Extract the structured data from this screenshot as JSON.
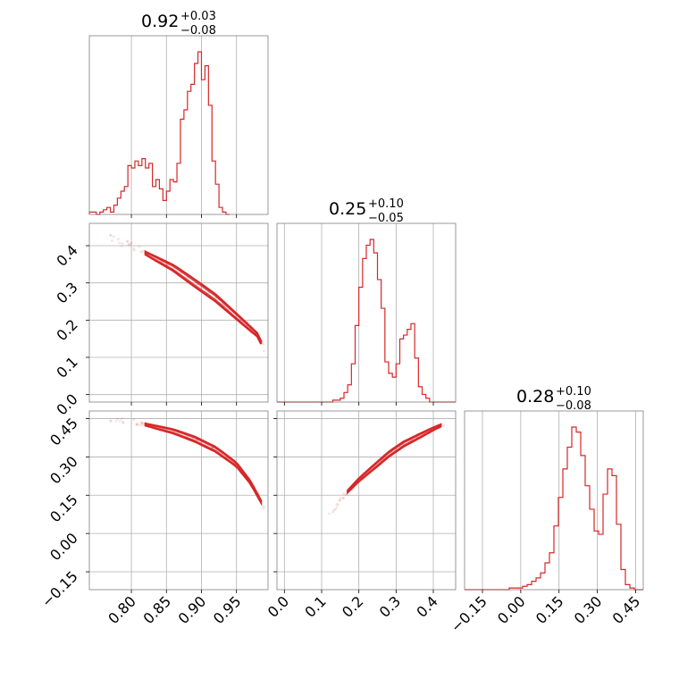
{
  "chart_data": [
    {
      "type": "histogram",
      "panel": "diag-1",
      "title_value": "0.92",
      "title_plus": "+0.03",
      "title_minus": "−0.08",
      "xlim": [
        0.74,
        0.995
      ],
      "bins_start": 0.74,
      "bin_width": 0.005,
      "counts": [
        1,
        1,
        0,
        1,
        2,
        3,
        1,
        4,
        7,
        10,
        12,
        21,
        20,
        23,
        21,
        24,
        20,
        22,
        12,
        15,
        11,
        6,
        10,
        15,
        14,
        22,
        41,
        45,
        53,
        56,
        65,
        70,
        58,
        64,
        47,
        23,
        13,
        3,
        1,
        0
      ],
      "grid": true
    },
    {
      "type": "scatter",
      "panel": "y1-vs-x1",
      "x_ticks": [
        "0.80",
        "0.85",
        "0.90",
        "0.95"
      ],
      "y_ticks": [
        "0.0",
        "0.1",
        "0.2",
        "0.3",
        "0.4"
      ],
      "xlim": [
        0.74,
        0.995
      ],
      "ylim": [
        -0.02,
        0.46
      ],
      "trend_x": [
        0.77,
        0.8,
        0.83,
        0.86,
        0.89,
        0.92,
        0.95,
        0.98,
        0.99
      ],
      "trend_y": [
        0.42,
        0.4,
        0.37,
        0.34,
        0.3,
        0.26,
        0.21,
        0.16,
        0.12
      ],
      "grid": true
    },
    {
      "type": "histogram",
      "panel": "diag-2",
      "title_value": "0.25",
      "title_plus": "+0.10",
      "title_minus": "−0.05",
      "xlim": [
        -0.02,
        0.46
      ],
      "bins_start": -0.02,
      "bin_width": 0.01,
      "counts": [
        0,
        0,
        0,
        0,
        0,
        0,
        0,
        0,
        0,
        0,
        0,
        0,
        0,
        0,
        0,
        1,
        1,
        2,
        5,
        9,
        20,
        40,
        60,
        75,
        82,
        85,
        78,
        64,
        49,
        21,
        15,
        13,
        20,
        33,
        35,
        38,
        41,
        23,
        8,
        4,
        2,
        0,
        0,
        0,
        0,
        0,
        0,
        0
      ],
      "grid": true
    },
    {
      "type": "scatter",
      "panel": "y2-vs-x1",
      "y_ticks": [
        "−0.15",
        "0.00",
        "0.15",
        "0.30",
        "0.45"
      ],
      "xlim": [
        0.74,
        0.995
      ],
      "ylim": [
        -0.22,
        0.48
      ],
      "trend_x": [
        0.77,
        0.8,
        0.83,
        0.86,
        0.89,
        0.92,
        0.95,
        0.97,
        0.99
      ],
      "trend_y": [
        0.45,
        0.44,
        0.42,
        0.4,
        0.37,
        0.33,
        0.27,
        0.2,
        0.1
      ],
      "grid": true
    },
    {
      "type": "scatter",
      "panel": "y2-vs-x2",
      "x_ticks": [
        "0.0",
        "0.1",
        "0.2",
        "0.3",
        "0.4"
      ],
      "xlim": [
        -0.02,
        0.46
      ],
      "ylim": [
        -0.22,
        0.48
      ],
      "trend_x": [
        0.12,
        0.16,
        0.2,
        0.24,
        0.28,
        0.32,
        0.36,
        0.4,
        0.43
      ],
      "trend_y": [
        0.07,
        0.15,
        0.21,
        0.26,
        0.31,
        0.35,
        0.38,
        0.41,
        0.43
      ],
      "grid": true
    },
    {
      "type": "histogram",
      "panel": "diag-3",
      "title_value": "0.28",
      "title_plus": "+0.10",
      "title_minus": "−0.08",
      "x_ticks": [
        "−0.15",
        "0.00",
        "0.15",
        "0.30",
        "0.45"
      ],
      "xlim": [
        -0.22,
        0.48
      ],
      "bins_start": -0.22,
      "bin_width": 0.0175,
      "counts": [
        0,
        0,
        0,
        0,
        0,
        0,
        0,
        0,
        0,
        0,
        1,
        1,
        1,
        2,
        3,
        5,
        7,
        10,
        16,
        22,
        38,
        55,
        72,
        85,
        97,
        94,
        80,
        62,
        48,
        35,
        33,
        57,
        72,
        68,
        39,
        12,
        3,
        1,
        0,
        0
      ],
      "grid": true
    }
  ]
}
